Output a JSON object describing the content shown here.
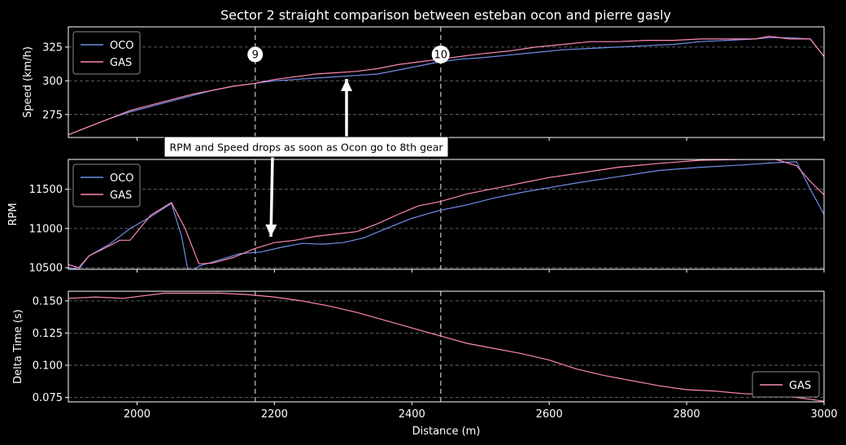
{
  "figure": {
    "title": "Sector 2 straight comparison between esteban ocon and pierre gasly",
    "background": "#000000",
    "text_color": "#ffffff"
  },
  "annotation": {
    "text": "RPM and Speed drops as soon as Ocon go to 8th gear"
  },
  "corners": [
    {
      "label": "9",
      "distance": 2172
    },
    {
      "label": "10",
      "distance": 2442
    }
  ],
  "chart_data": [
    {
      "type": "line",
      "ylabel": "Speed (km/h)",
      "xlabel": "",
      "xlim": [
        1900,
        3000
      ],
      "ylim": [
        258,
        340
      ],
      "yticks": [
        275,
        300,
        325
      ],
      "xticks": [
        2000,
        2200,
        2400,
        2600,
        2800,
        3000
      ],
      "grid": true,
      "legend": "top-left",
      "series": [
        {
          "name": "OCO",
          "color": "#6f8ee8",
          "x": [
            1900,
            1930,
            1960,
            1990,
            2020,
            2050,
            2080,
            2110,
            2140,
            2170,
            2200,
            2230,
            2260,
            2290,
            2320,
            2350,
            2380,
            2410,
            2440,
            2470,
            2500,
            2540,
            2580,
            2620,
            2660,
            2700,
            2740,
            2780,
            2820,
            2860,
            2900,
            2920,
            2950,
            2980,
            3000
          ],
          "y": [
            260,
            266,
            272,
            277,
            281,
            285,
            289,
            293,
            296,
            298,
            300,
            301,
            302,
            303,
            304,
            305,
            308,
            311,
            314,
            316,
            317,
            319,
            321,
            323,
            324,
            325,
            326,
            327,
            329,
            330,
            331,
            332,
            332,
            331,
            318
          ]
        },
        {
          "name": "GAS",
          "color": "#ff87b4",
          "x": [
            1900,
            1930,
            1960,
            1990,
            2020,
            2050,
            2080,
            2110,
            2140,
            2170,
            2200,
            2230,
            2260,
            2290,
            2320,
            2350,
            2380,
            2410,
            2440,
            2470,
            2500,
            2540,
            2580,
            2620,
            2660,
            2700,
            2740,
            2780,
            2820,
            2860,
            2900,
            2920,
            2950,
            2980,
            3000
          ],
          "y": [
            260,
            266,
            272,
            278,
            282,
            286,
            290,
            293,
            296,
            298,
            301,
            303,
            305,
            306,
            307,
            309,
            312,
            314,
            316,
            318,
            320,
            322,
            325,
            327,
            329,
            329,
            330,
            330,
            331,
            331,
            331,
            333,
            331,
            331,
            318
          ]
        }
      ]
    },
    {
      "type": "line",
      "ylabel": "RPM",
      "xlabel": "",
      "xlim": [
        1900,
        3000
      ],
      "ylim": [
        10480,
        11880
      ],
      "yticks": [
        10500,
        11000,
        11500
      ],
      "xticks": [
        2000,
        2200,
        2400,
        2600,
        2800,
        3000
      ],
      "grid": true,
      "legend": "top-left",
      "series": [
        {
          "name": "OCO",
          "color": "#6f8ee8",
          "x": [
            1900,
            1915,
            1930,
            1960,
            1990,
            2020,
            2050,
            2065,
            2075,
            2090,
            2120,
            2150,
            2180,
            2210,
            2240,
            2270,
            2300,
            2330,
            2360,
            2400,
            2440,
            2480,
            2520,
            2560,
            2600,
            2640,
            2700,
            2760,
            2820,
            2880,
            2930,
            2960,
            2980,
            3000
          ],
          "y": [
            10500,
            10480,
            10650,
            10800,
            11000,
            11150,
            11320,
            10900,
            10420,
            10520,
            10600,
            10680,
            10700,
            10760,
            10810,
            10800,
            10820,
            10880,
            10990,
            11130,
            11230,
            11300,
            11390,
            11460,
            11520,
            11580,
            11660,
            11740,
            11780,
            11810,
            11840,
            11850,
            11500,
            11180
          ]
        },
        {
          "name": "GAS",
          "color": "#ff87b4",
          "x": [
            1900,
            1915,
            1930,
            1960,
            1975,
            1990,
            2020,
            2050,
            2070,
            2090,
            2110,
            2140,
            2170,
            2200,
            2230,
            2260,
            2290,
            2320,
            2350,
            2380,
            2410,
            2440,
            2480,
            2520,
            2560,
            2600,
            2640,
            2700,
            2760,
            2820,
            2880,
            2930,
            2960,
            2980,
            3000
          ],
          "y": [
            10540,
            10500,
            10650,
            10780,
            10850,
            10850,
            11170,
            11330,
            11000,
            10550,
            10560,
            10630,
            10740,
            10820,
            10850,
            10900,
            10930,
            10960,
            11060,
            11180,
            11290,
            11340,
            11440,
            11510,
            11580,
            11650,
            11700,
            11780,
            11830,
            11870,
            11880,
            11880,
            11800,
            11600,
            11430
          ]
        }
      ]
    },
    {
      "type": "line",
      "ylabel": "Delta Time (s)",
      "xlabel": "Distance (m)",
      "xlim": [
        1900,
        3000
      ],
      "ylim": [
        0.0715,
        0.1575
      ],
      "yticks": [
        0.075,
        0.1,
        0.125,
        0.15
      ],
      "xticks": [
        2000,
        2200,
        2400,
        2600,
        2800,
        3000
      ],
      "grid": true,
      "legend": "bottom-right",
      "series": [
        {
          "name": "GAS",
          "color": "#ff87b4",
          "x": [
            1900,
            1940,
            1980,
            2040,
            2080,
            2120,
            2160,
            2200,
            2240,
            2280,
            2320,
            2360,
            2400,
            2440,
            2480,
            2520,
            2560,
            2600,
            2640,
            2680,
            2720,
            2760,
            2800,
            2840,
            2880,
            2920,
            2960,
            3000
          ],
          "y": [
            0.152,
            0.153,
            0.152,
            0.156,
            0.156,
            0.156,
            0.155,
            0.153,
            0.15,
            0.146,
            0.141,
            0.135,
            0.129,
            0.123,
            0.117,
            0.113,
            0.109,
            0.104,
            0.097,
            0.092,
            0.088,
            0.084,
            0.081,
            0.08,
            0.078,
            0.077,
            0.075,
            0.072
          ]
        }
      ]
    }
  ]
}
